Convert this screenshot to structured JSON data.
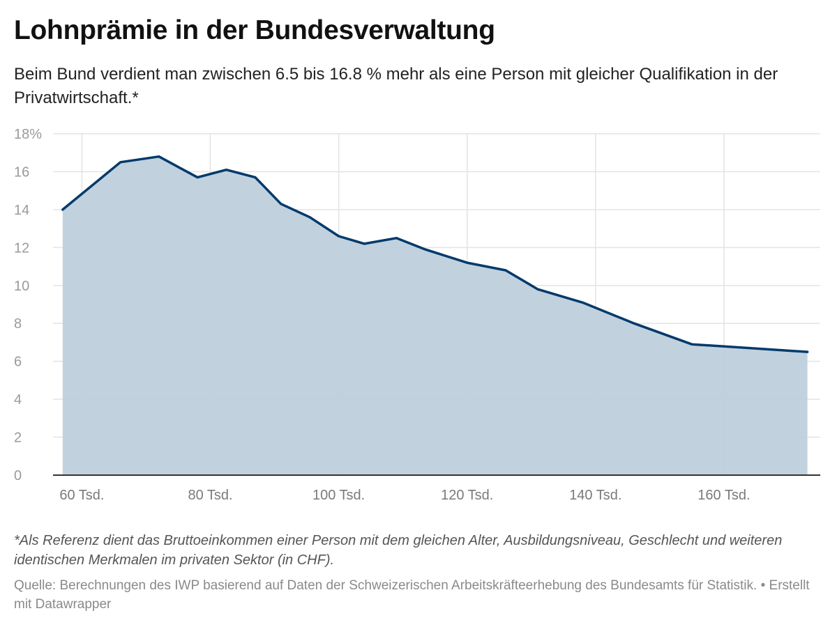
{
  "header": {
    "title": "Lohnprämie in der Bundesverwaltung",
    "subtitle": "Beim Bund verdient man zwischen 6.5 bis 16.8 % mehr als eine Person mit gleicher Qualifikation in der Privatwirtschaft.*"
  },
  "chart_data": {
    "type": "area",
    "x": [
      57,
      66,
      72,
      78,
      82.5,
      87,
      91,
      95.5,
      100,
      104,
      109,
      113.5,
      120,
      126,
      131,
      138,
      146,
      155,
      164,
      173
    ],
    "series": [
      {
        "values": [
          14.0,
          16.5,
          16.8,
          15.7,
          16.1,
          15.7,
          14.3,
          13.6,
          12.6,
          12.2,
          12.5,
          11.9,
          11.2,
          10.8,
          9.8,
          9.1,
          8.0,
          6.9,
          6.7,
          6.5
        ],
        "color": "#003a6b",
        "fill": "#bfcfdc"
      }
    ],
    "xlim": [
      55.5,
      175
    ],
    "ylim": [
      0,
      18
    ],
    "x_ticks": [
      {
        "value": 60,
        "label": "60 Tsd."
      },
      {
        "value": 80,
        "label": "80 Tsd."
      },
      {
        "value": 100,
        "label": "100 Tsd."
      },
      {
        "value": 120,
        "label": "120 Tsd."
      },
      {
        "value": 140,
        "label": "140 Tsd."
      },
      {
        "value": 160,
        "label": "160 Tsd."
      }
    ],
    "y_ticks": [
      {
        "value": 0,
        "label": "0"
      },
      {
        "value": 2,
        "label": "2"
      },
      {
        "value": 4,
        "label": "4"
      },
      {
        "value": 6,
        "label": "6"
      },
      {
        "value": 8,
        "label": "8"
      },
      {
        "value": 10,
        "label": "10"
      },
      {
        "value": 12,
        "label": "12"
      },
      {
        "value": 14,
        "label": "14"
      },
      {
        "value": 16,
        "label": "16"
      },
      {
        "value": 18,
        "label": "18%"
      }
    ],
    "grid": true,
    "legend": "none"
  },
  "footer": {
    "note": "*Als Referenz dient das Bruttoeinkommen einer Person mit dem gleichen Alter, Ausbildungsniveau, Geschlecht und weiteren identischen Merkmalen im privaten Sektor (in CHF).",
    "source": "Quelle: Berechnungen des IWP basierend auf Daten der Schweizerischen Arbeitskräfteerhebung des Bundesamts für Statistik. • Erstellt mit Datawrapper"
  }
}
